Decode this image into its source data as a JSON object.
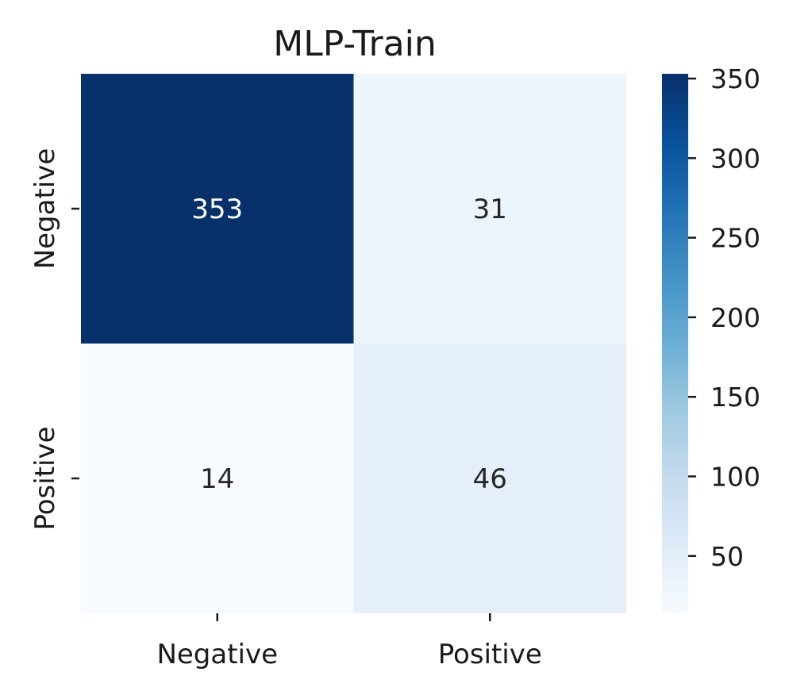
{
  "chart_data": {
    "type": "heatmap",
    "title": "MLP-Train",
    "xlabel": "",
    "ylabel": "",
    "x_categories": [
      "Negative",
      "Positive"
    ],
    "y_categories": [
      "Negative",
      "Positive"
    ],
    "values": [
      [
        353,
        31
      ],
      [
        14,
        46
      ]
    ],
    "colormap": "Blues",
    "colors": [
      "#f7fbff",
      "#deebf7",
      "#c6dbef",
      "#9ecae1",
      "#6baed6",
      "#4292c6",
      "#2171b5",
      "#08519c",
      "#08306b"
    ],
    "colorbar": {
      "ticks": [
        50,
        100,
        150,
        200,
        250,
        300,
        350
      ],
      "range": [
        14,
        353
      ]
    }
  }
}
